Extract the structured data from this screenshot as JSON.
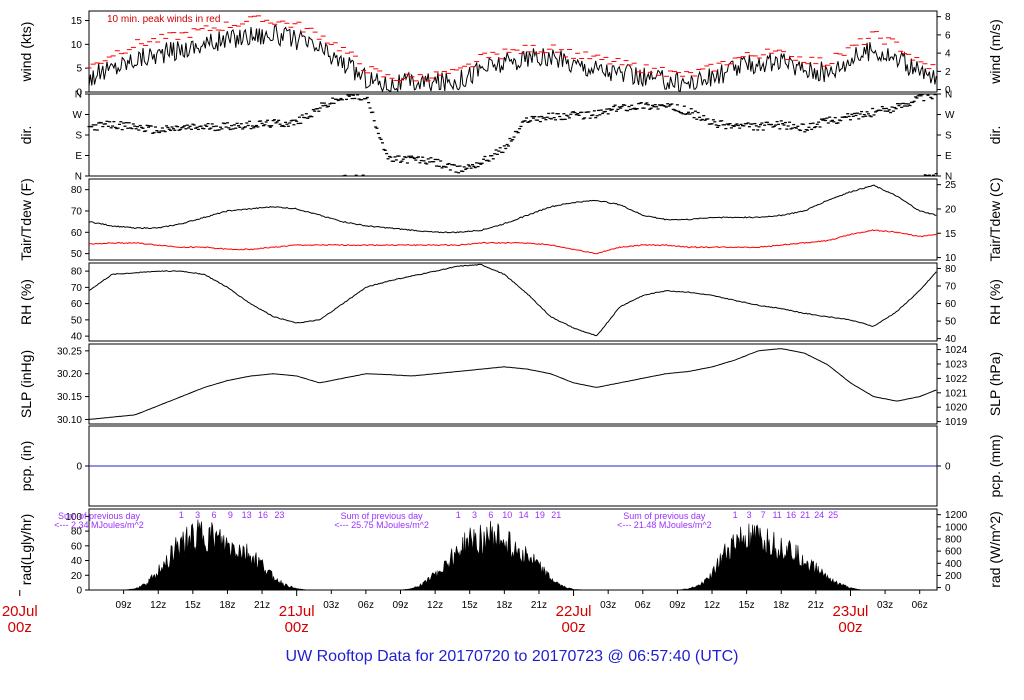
{
  "chart_data": [
    {
      "type": "line",
      "ylabel": "wind (kts)",
      "ylabel_right": "wind (m/s)",
      "annotation": "10 min. peak winds in red",
      "ylim": [
        0,
        17
      ],
      "yticks": [
        "0",
        "5",
        "10",
        "15"
      ],
      "yticks_right": [
        "0",
        "2",
        "4",
        "6",
        "8"
      ],
      "series": [
        {
          "name": "wind speed",
          "color": "#000000",
          "x": [
            0,
            2,
            4,
            6,
            8,
            10,
            12,
            14,
            16,
            18,
            20,
            22,
            24,
            26,
            28,
            30,
            32,
            34,
            36,
            38,
            40,
            42,
            44,
            46,
            48,
            50,
            52,
            54,
            56,
            58,
            60,
            62,
            64,
            66,
            68,
            70,
            72,
            73.5
          ],
          "y": [
            3,
            5,
            7,
            8,
            9,
            10,
            11,
            12,
            12,
            11,
            9,
            6,
            3,
            1.5,
            2,
            2,
            2.5,
            5,
            6,
            7,
            7,
            6,
            5,
            4,
            3,
            2.5,
            2,
            3,
            5,
            6,
            6,
            5,
            4,
            7,
            9,
            7,
            4,
            3
          ]
        },
        {
          "name": "10 min. peak winds",
          "color": "#ff0000",
          "x": [
            0,
            2,
            4,
            6,
            8,
            10,
            12,
            14,
            16,
            18,
            20,
            22,
            24,
            26,
            28,
            30,
            32,
            34,
            36,
            38,
            40,
            42,
            44,
            46,
            48,
            50,
            52,
            54,
            56,
            58,
            60,
            62,
            64,
            66,
            68,
            70,
            72,
            73.5
          ],
          "y": [
            5,
            8,
            10,
            11,
            12,
            13,
            14,
            15,
            15,
            14,
            12,
            9,
            5,
            3,
            3,
            3.5,
            4,
            7,
            8,
            9,
            9,
            8,
            7,
            6,
            5,
            4,
            3.5,
            5,
            7,
            8,
            8,
            7,
            6,
            9,
            12,
            10,
            6,
            5
          ]
        }
      ]
    },
    {
      "type": "scatter",
      "ylabel": "dir.",
      "ylabel_right": "dir.",
      "ylim": [
        0,
        360
      ],
      "yticks": [
        "N",
        "E",
        "S",
        "W",
        "N"
      ],
      "yticks_right": [
        "N",
        "E",
        "S",
        "W",
        "N"
      ],
      "series": [
        {
          "name": "wind direction",
          "color": "#000000",
          "x": [
            0,
            2,
            4,
            6,
            8,
            10,
            12,
            14,
            16,
            18,
            20,
            22,
            24,
            26,
            28,
            30,
            32,
            34,
            36,
            38,
            40,
            42,
            44,
            46,
            48,
            50,
            52,
            54,
            56,
            58,
            60,
            62,
            64,
            66,
            68,
            70,
            72,
            73.5
          ],
          "y": [
            215,
            225,
            215,
            200,
            210,
            215,
            220,
            225,
            230,
            235,
            300,
            345,
            350,
            70,
            75,
            60,
            25,
            60,
            120,
            250,
            260,
            265,
            270,
            300,
            310,
            305,
            285,
            230,
            220,
            215,
            225,
            210,
            240,
            260,
            280,
            300,
            345,
            355
          ]
        }
      ]
    },
    {
      "type": "line",
      "ylabel": "Tair/Tdew (F)",
      "ylabel_right": "Tair/Tdew (C)",
      "ylim": [
        47,
        85
      ],
      "yticks": [
        "50",
        "60",
        "70",
        "80"
      ],
      "yticks_right": [
        "10",
        "15",
        "20",
        "25"
      ],
      "series": [
        {
          "name": "Tair",
          "color": "#000000",
          "x": [
            0,
            2,
            4,
            6,
            8,
            10,
            12,
            14,
            16,
            18,
            20,
            22,
            24,
            26,
            28,
            30,
            32,
            34,
            36,
            38,
            40,
            42,
            44,
            46,
            48,
            50,
            52,
            54,
            56,
            58,
            60,
            62,
            64,
            66,
            68,
            70,
            72,
            73.5
          ],
          "y": [
            65,
            63,
            62,
            62,
            64,
            67,
            70,
            71,
            72,
            71,
            68,
            65,
            63,
            62,
            61,
            60,
            60,
            61,
            64,
            68,
            72,
            74,
            75,
            73,
            68,
            66,
            66,
            67,
            67,
            67,
            68,
            70,
            75,
            79,
            82,
            77,
            70,
            68
          ]
        },
        {
          "name": "Tdew",
          "color": "#ff0000",
          "x": [
            0,
            2,
            4,
            6,
            8,
            10,
            12,
            14,
            16,
            18,
            20,
            22,
            24,
            26,
            28,
            30,
            32,
            34,
            36,
            38,
            40,
            42,
            44,
            46,
            48,
            50,
            52,
            54,
            56,
            58,
            60,
            62,
            64,
            66,
            68,
            70,
            72,
            73.5
          ],
          "y": [
            54.5,
            55,
            55,
            54,
            53,
            53,
            52,
            52,
            53,
            54,
            54,
            54,
            54,
            54,
            54,
            54,
            54,
            55,
            55,
            55,
            54,
            52,
            50,
            53,
            54,
            54,
            53,
            53,
            53,
            53,
            54,
            55,
            56,
            59,
            61,
            60,
            58,
            59
          ]
        }
      ]
    },
    {
      "type": "line",
      "ylabel": "RH (%)",
      "ylabel_right": "RH (%)",
      "ylim": [
        37,
        85
      ],
      "yticks": [
        "40",
        "50",
        "60",
        "70",
        "80"
      ],
      "yticks_right": [
        "40",
        "50",
        "60",
        "70",
        "80"
      ],
      "series": [
        {
          "name": "RH",
          "color": "#000000",
          "x": [
            0,
            2,
            4,
            6,
            8,
            10,
            12,
            14,
            16,
            18,
            20,
            22,
            24,
            26,
            28,
            30,
            32,
            34,
            36,
            38,
            40,
            42,
            44,
            46,
            48,
            50,
            52,
            54,
            56,
            58,
            60,
            62,
            64,
            66,
            68,
            70,
            72,
            73.5
          ],
          "y": [
            68,
            78,
            79,
            80,
            80,
            78,
            70,
            60,
            52,
            48,
            50,
            60,
            70,
            74,
            77,
            80,
            83,
            84,
            78,
            66,
            52,
            45,
            40,
            58,
            65,
            68,
            67,
            65,
            62,
            59,
            57,
            54,
            52,
            50,
            46,
            55,
            68,
            80
          ]
        }
      ]
    },
    {
      "type": "line",
      "ylabel": "SLP (inHg)",
      "ylabel_right": "SLP (hPa)",
      "ylim": [
        30.09,
        30.265
      ],
      "yticks": [
        "30.10",
        "30.15",
        "30.20",
        "30.25"
      ],
      "yticks_right": [
        "1019",
        "1020",
        "1021",
        "1022",
        "1023",
        "1024"
      ],
      "series": [
        {
          "name": "SLP",
          "color": "#000000",
          "x": [
            0,
            2,
            4,
            6,
            8,
            10,
            12,
            14,
            16,
            18,
            20,
            22,
            24,
            26,
            28,
            30,
            32,
            34,
            36,
            38,
            40,
            42,
            44,
            46,
            48,
            50,
            52,
            54,
            56,
            58,
            60,
            62,
            64,
            66,
            68,
            70,
            72,
            73.5
          ],
          "y": [
            30.1,
            30.105,
            30.11,
            30.13,
            30.15,
            30.17,
            30.185,
            30.195,
            30.2,
            30.195,
            30.18,
            30.19,
            30.2,
            30.198,
            30.195,
            30.2,
            30.205,
            30.21,
            30.215,
            30.21,
            30.2,
            30.18,
            30.17,
            30.18,
            30.19,
            30.2,
            30.205,
            30.215,
            30.23,
            30.25,
            30.255,
            30.245,
            30.22,
            30.18,
            30.15,
            30.14,
            30.15,
            30.165
          ]
        }
      ]
    },
    {
      "type": "line",
      "ylabel": "pcp. (in)",
      "ylabel_right": "pcp. (mm)",
      "ylim": [
        -1,
        1
      ],
      "yticks": [
        "0"
      ],
      "yticks_right": [
        "0"
      ],
      "series": [
        {
          "name": "precipitation",
          "color": "#2222cc",
          "x": [
            0,
            73.5
          ],
          "y": [
            0,
            0
          ]
        }
      ]
    },
    {
      "type": "area",
      "ylabel": "rad(Lgly/hr)",
      "ylabel_right": "rad (W/m^2)",
      "ylim": [
        0,
        110
      ],
      "yticks": [
        "0",
        "20",
        "40",
        "60",
        "80",
        "100"
      ],
      "yticks_right": [
        "0",
        "200",
        "400",
        "600",
        "800",
        "1000",
        "1200"
      ],
      "annotations": [
        {
          "day": 0,
          "text1": "Sum of previous day",
          "text2": "<--- 2.34 MJoules/m^2"
        },
        {
          "day": 1,
          "text1": "Sum of previous day",
          "text2": "<--- 25.75 MJoules/m^2"
        },
        {
          "day": 2,
          "text1": "Sum of previous day",
          "text2": "<--- 21.48 MJoules/m^2"
        }
      ],
      "hour_labels": [
        {
          "day": 0,
          "labels": [
            "1",
            "3",
            "6",
            "9",
            "13",
            "16",
            "23"
          ]
        },
        {
          "day": 1,
          "labels": [
            "1",
            "3",
            "6",
            "10",
            "14",
            "19",
            "21"
          ]
        },
        {
          "day": 2,
          "labels": [
            "1",
            "3",
            "7",
            "11",
            "16",
            "21",
            "24",
            "25"
          ]
        }
      ],
      "series": [
        {
          "name": "solar radiation",
          "color": "#000000",
          "x": [
            0,
            3,
            4,
            5,
            6,
            7,
            8,
            9,
            10,
            11,
            12,
            13,
            14,
            15,
            16,
            17,
            18,
            19,
            27,
            28,
            29,
            30,
            31,
            32,
            33,
            34,
            35,
            36,
            37,
            38,
            39,
            40,
            41,
            42,
            43,
            51,
            52,
            53,
            54,
            55,
            56,
            57,
            58,
            59,
            60,
            61,
            62,
            63,
            64,
            65,
            66,
            67,
            73.5
          ],
          "y": [
            0,
            0,
            2,
            10,
            30,
            55,
            75,
            85,
            90,
            80,
            70,
            65,
            55,
            40,
            20,
            8,
            2,
            0,
            0,
            2,
            10,
            25,
            45,
            62,
            78,
            88,
            85,
            80,
            70,
            55,
            38,
            18,
            6,
            1,
            0,
            0,
            2,
            8,
            25,
            55,
            78,
            85,
            82,
            78,
            72,
            62,
            50,
            36,
            22,
            10,
            3,
            0,
            0
          ]
        }
      ]
    }
  ],
  "xaxis": {
    "hour_ticks": [
      "09z",
      "12z",
      "15z",
      "18z",
      "21z",
      "03z",
      "06z",
      "09z",
      "12z",
      "15z",
      "18z",
      "21z",
      "03z",
      "06z",
      "09z",
      "12z",
      "15z",
      "18z",
      "21z",
      "03z",
      "06z"
    ],
    "hour_positions": [
      3,
      6,
      9,
      12,
      15,
      21,
      24,
      27,
      30,
      33,
      36,
      39,
      45,
      48,
      51,
      54,
      57,
      60,
      63,
      69,
      72
    ],
    "day_labels": [
      {
        "x": -6,
        "date": "20Jul",
        "hour": "00z"
      },
      {
        "x": 18,
        "date": "21Jul",
        "hour": "00z"
      },
      {
        "x": 42,
        "date": "22Jul",
        "hour": "00z"
      },
      {
        "x": 66,
        "date": "23Jul",
        "hour": "00z"
      }
    ],
    "xlim": [
      0,
      73.5
    ]
  },
  "footer_title": "UW Rooftop Data for 20170720  to  20170723 @ 06:57:40  (UTC)"
}
